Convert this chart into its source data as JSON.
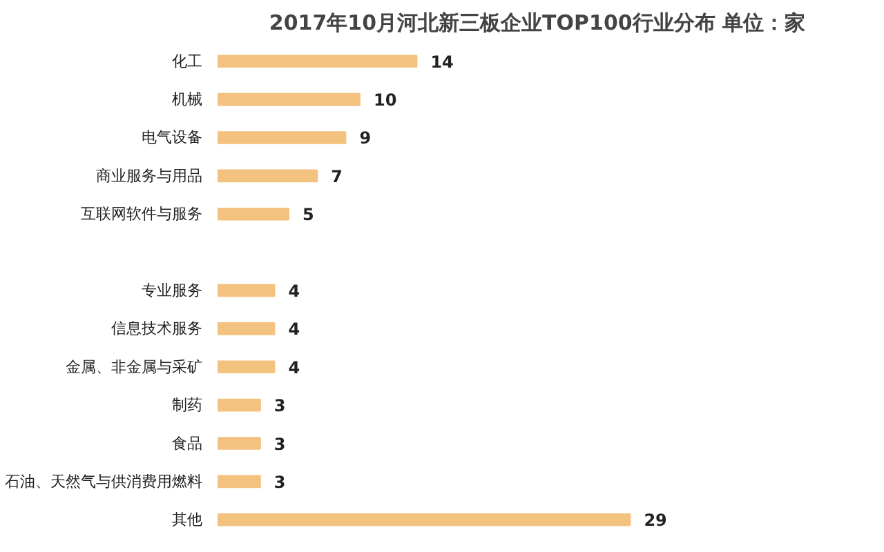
{
  "chart_data": {
    "type": "bar",
    "orientation": "horizontal",
    "title": "2017年10月河北新三板企业TOP100行业分布 单位：家",
    "categories": [
      "化工",
      "机械",
      "电气设备",
      "商业服务与用品",
      "互联网软件与服务",
      null,
      "专业服务",
      "信息技术服务",
      "金属、非金属与采矿",
      "制药",
      "食品",
      "石油、天然气与供消费用燃料",
      "其他"
    ],
    "values": [
      14,
      10,
      9,
      7,
      5,
      null,
      4,
      4,
      4,
      3,
      3,
      3,
      29
    ],
    "color": "#f4c27f",
    "data_labels": true,
    "grid": false
  }
}
